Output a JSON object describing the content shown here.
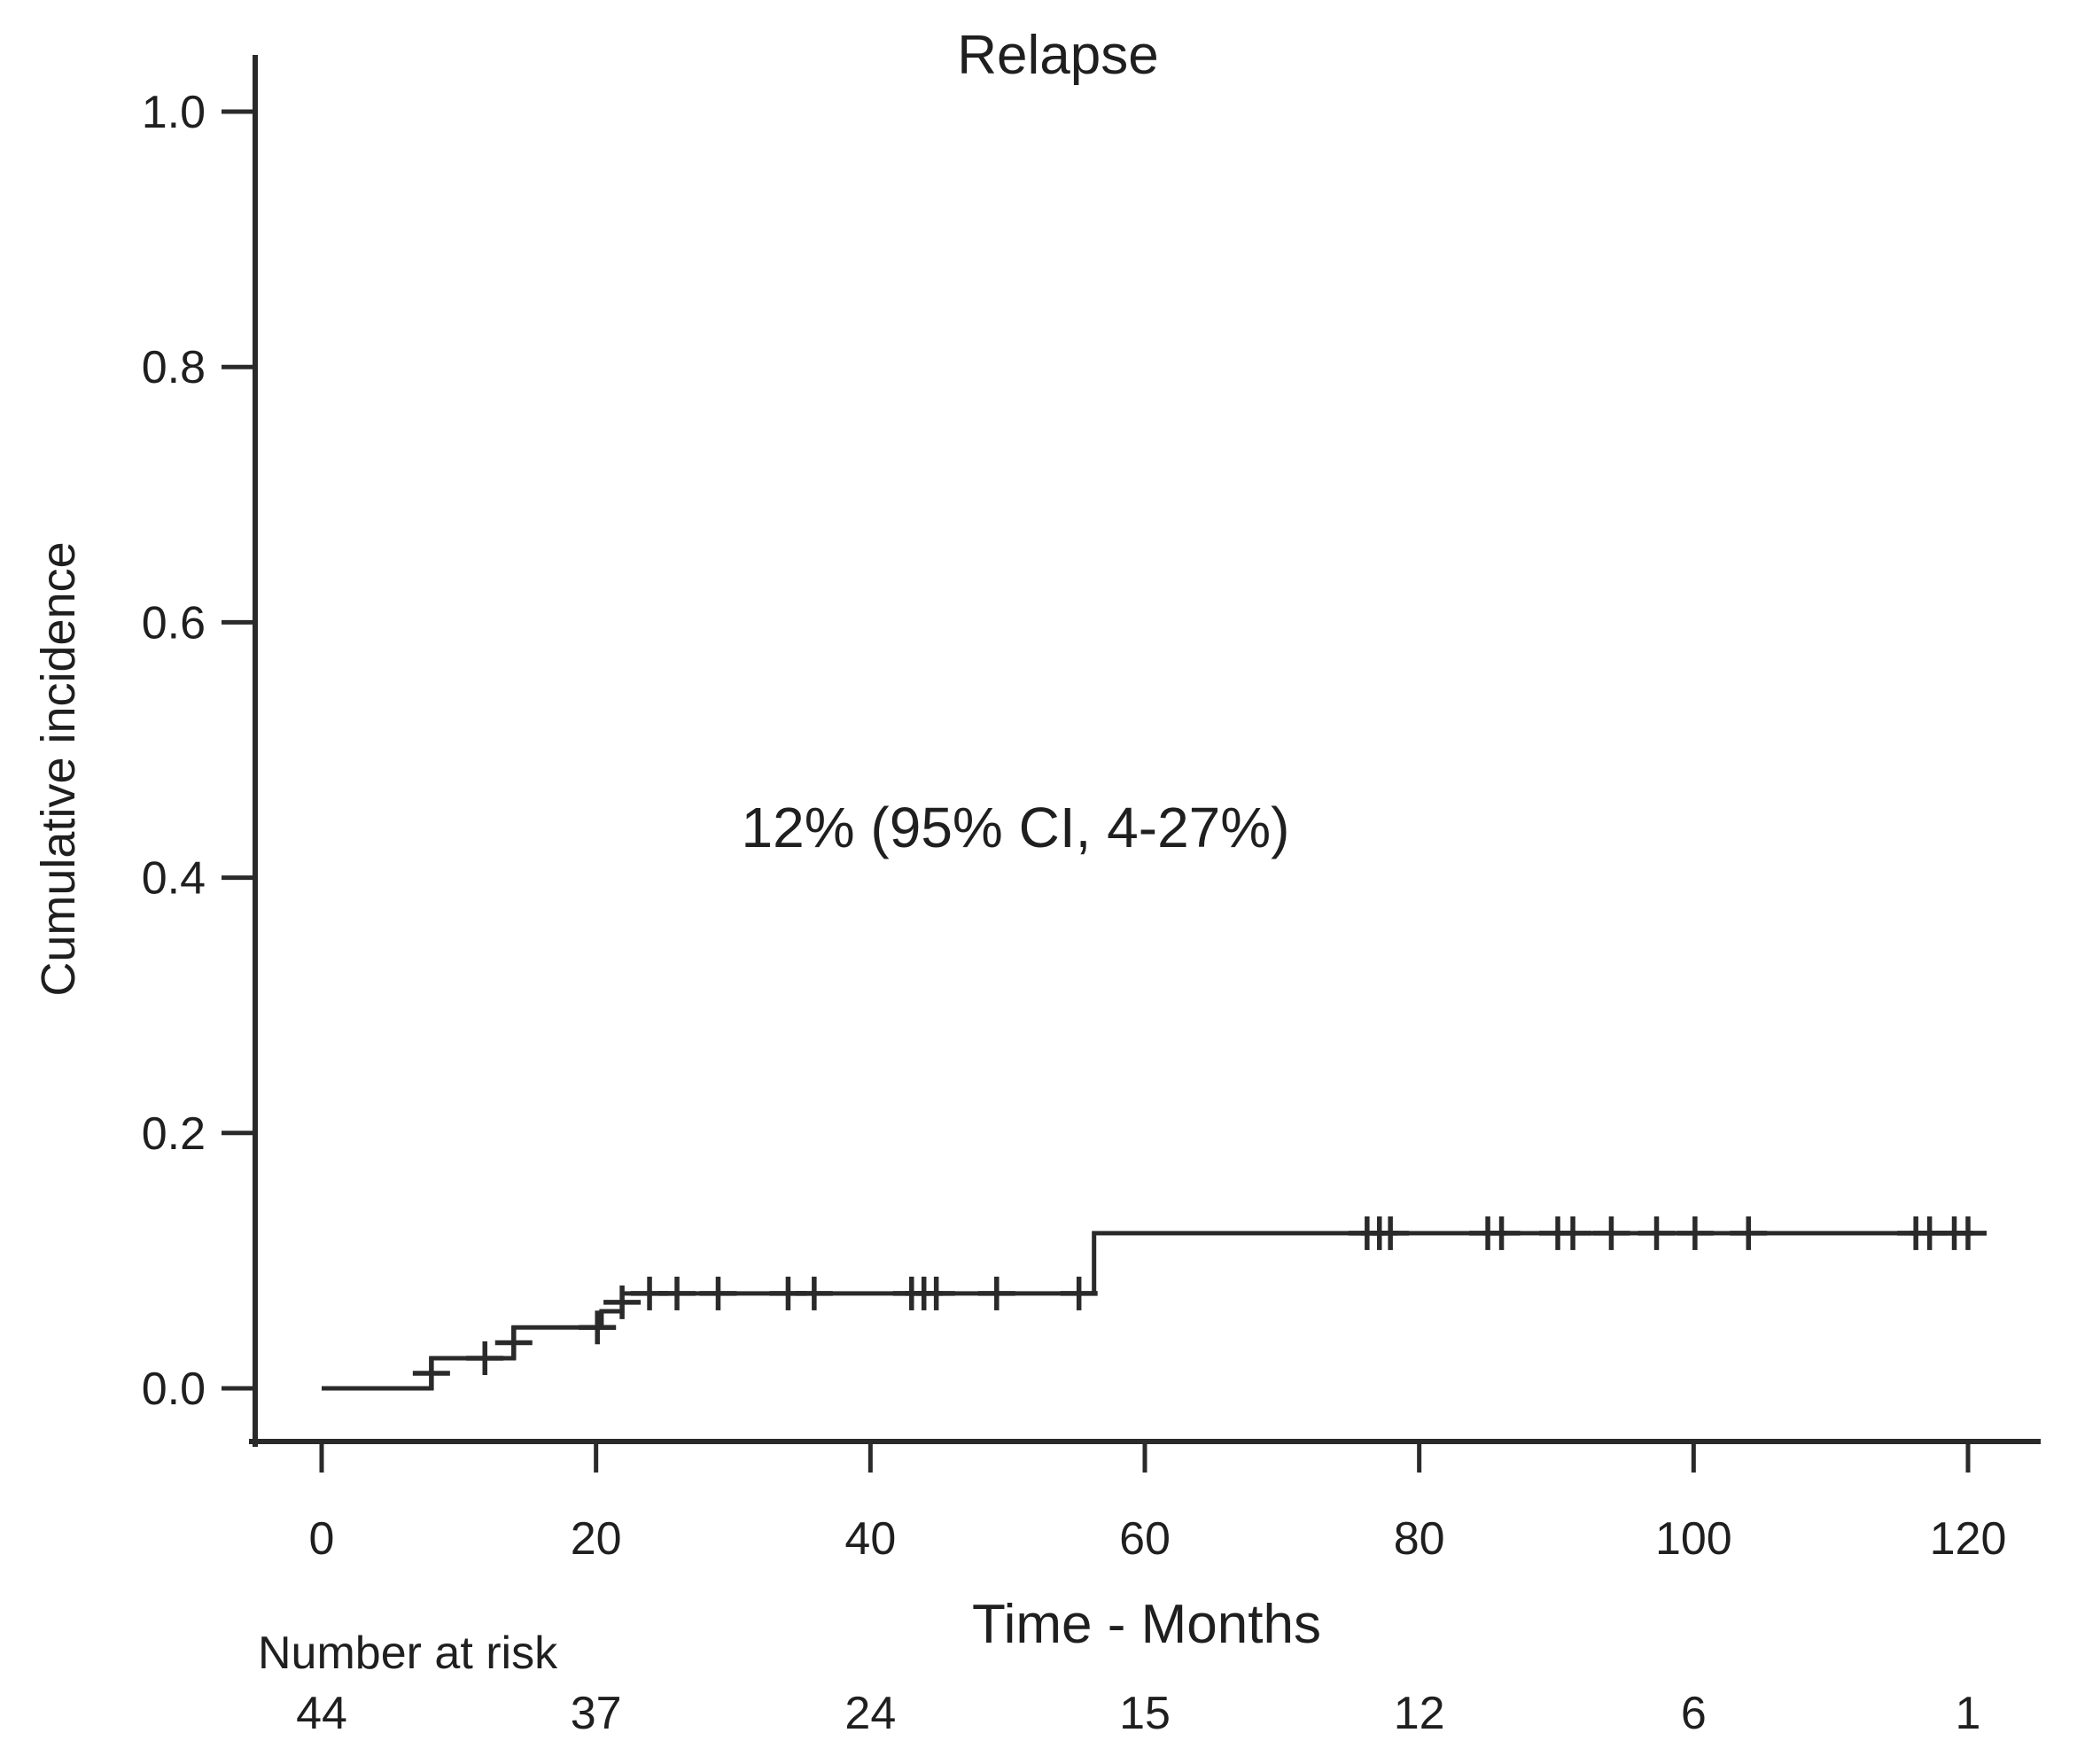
{
  "colors": {
    "line": "#2a2a2a",
    "text": "#1f1f1f",
    "background": "#ffffff"
  },
  "chart_data": {
    "type": "line",
    "subtype": "cumulative-incidence-step-curve",
    "title": "Relapse",
    "xlabel": "Time - Months",
    "ylabel": "Cumulative incidence",
    "annotation": "12% (95% CI, 4-27%)",
    "xlim": [
      0,
      120
    ],
    "ylim": [
      0.0,
      1.0
    ],
    "grid": false,
    "legend": null,
    "x_ticks": [
      {
        "value": 0,
        "label": "0"
      },
      {
        "value": 20,
        "label": "20"
      },
      {
        "value": 40,
        "label": "40"
      },
      {
        "value": 60,
        "label": "60"
      },
      {
        "value": 80,
        "label": "80"
      },
      {
        "value": 100,
        "label": "100"
      },
      {
        "value": 120,
        "label": "120"
      }
    ],
    "y_ticks": [
      {
        "value": 0.0,
        "label": "0.0"
      },
      {
        "value": 0.2,
        "label": "0.2"
      },
      {
        "value": 0.4,
        "label": "0.4"
      },
      {
        "value": 0.6,
        "label": "0.6"
      },
      {
        "value": 0.8,
        "label": "0.8"
      },
      {
        "value": 1.0,
        "label": "1.0"
      }
    ],
    "step_points": [
      [
        0,
        0
      ],
      [
        8,
        0
      ],
      [
        8,
        0.0236
      ],
      [
        14,
        0.0236
      ],
      [
        14,
        0.0477
      ],
      [
        20.4,
        0.0477
      ],
      [
        20.4,
        0.0604
      ],
      [
        21.9,
        0.0604
      ],
      [
        21.9,
        0.0743
      ],
      [
        56.3,
        0.0743
      ],
      [
        56.3,
        0.1215
      ],
      [
        120.3,
        0.1215
      ]
    ],
    "censor_marks": [
      [
        8,
        0.0118
      ],
      [
        11.9,
        0.0236
      ],
      [
        14,
        0.0357
      ],
      [
        20.1,
        0.0477
      ],
      [
        21.9,
        0.0674
      ],
      [
        23.9,
        0.0743
      ],
      [
        25.9,
        0.0743
      ],
      [
        28.9,
        0.0743
      ],
      [
        34,
        0.0743
      ],
      [
        35.9,
        0.0743
      ],
      [
        43,
        0.0743
      ],
      [
        43.9,
        0.0743
      ],
      [
        44.8,
        0.0743
      ],
      [
        49.2,
        0.0743
      ],
      [
        55.2,
        0.0743
      ],
      [
        76.2,
        0.1215
      ],
      [
        77.1,
        0.1215
      ],
      [
        77.9,
        0.1215
      ],
      [
        85,
        0.1215
      ],
      [
        86,
        0.1215
      ],
      [
        90.1,
        0.1215
      ],
      [
        91.2,
        0.1215
      ],
      [
        94,
        0.1215
      ],
      [
        97.3,
        0.1215
      ],
      [
        100.1,
        0.1215
      ],
      [
        104,
        0.1215
      ],
      [
        116.2,
        0.1215
      ],
      [
        117.2,
        0.1215
      ],
      [
        119,
        0.1215
      ],
      [
        120,
        0.1215
      ]
    ],
    "number_at_risk": {
      "label": "Number at risk",
      "times": [
        0,
        20,
        40,
        60,
        80,
        100,
        120
      ],
      "values": [
        44,
        37,
        24,
        15,
        12,
        6,
        1
      ]
    }
  }
}
